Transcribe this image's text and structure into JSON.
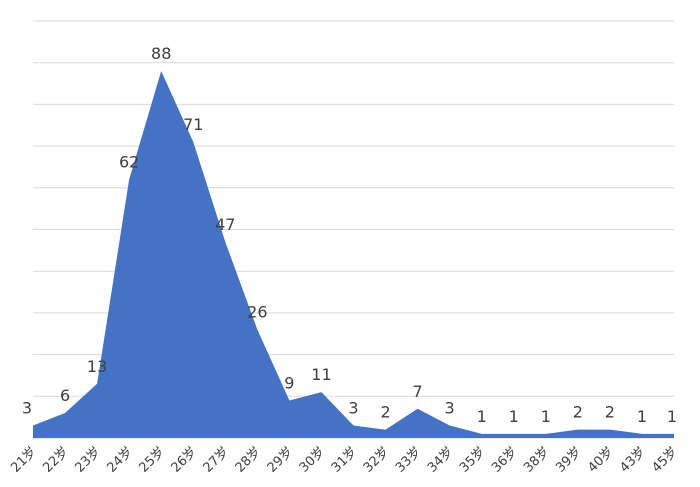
{
  "chart_data": {
    "type": "area",
    "categories": [
      "21岁",
      "22岁",
      "23岁",
      "24岁",
      "25岁",
      "26岁",
      "27岁",
      "28岁",
      "29岁",
      "30岁",
      "31岁",
      "32岁",
      "33岁",
      "34岁",
      "35岁",
      "36岁",
      "38岁",
      "39岁",
      "40岁",
      "43岁",
      "45岁"
    ],
    "values": [
      3,
      6,
      13,
      62,
      88,
      71,
      47,
      26,
      9,
      11,
      3,
      2,
      7,
      3,
      1,
      1,
      1,
      2,
      2,
      1,
      1
    ],
    "color": "#4472c4",
    "ylim": [
      0,
      100
    ],
    "yticks": [
      0,
      10,
      20,
      30,
      40,
      50,
      60,
      70,
      80,
      90,
      100
    ],
    "grid": true
  }
}
